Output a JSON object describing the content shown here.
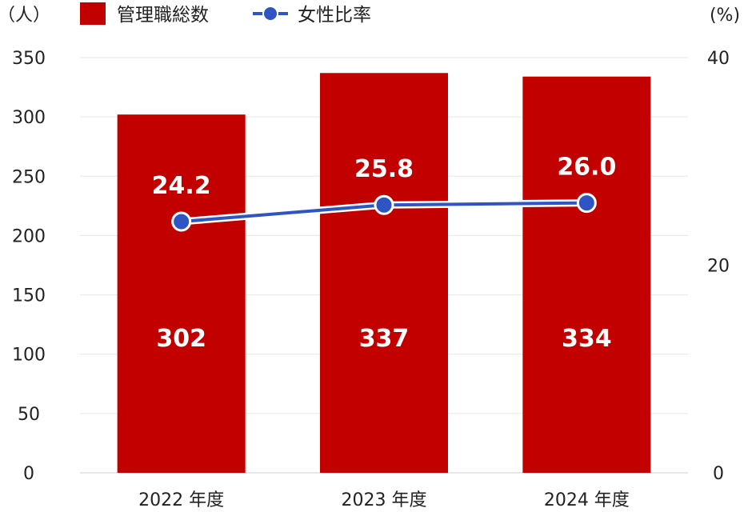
{
  "chart_data": {
    "type": "bar",
    "categories": [
      "2022 年度",
      "2023 年度",
      "2024 年度"
    ],
    "series": [
      {
        "name": "管理職総数",
        "kind": "bar",
        "axis": "left",
        "values": [
          302,
          337,
          334
        ],
        "color": "#c30000"
      },
      {
        "name": "女性比率",
        "kind": "line",
        "axis": "right",
        "values": [
          24.2,
          25.8,
          26.0
        ],
        "color": "#2f55c4"
      }
    ],
    "left_axis": {
      "unit": "（人）",
      "min": 0,
      "max": 350,
      "ticks": [
        0,
        50,
        100,
        150,
        200,
        250,
        300,
        350
      ]
    },
    "right_axis": {
      "unit": "(%)",
      "min": 0,
      "max": 40,
      "ticks": [
        0,
        20,
        40
      ]
    },
    "grid": true,
    "legend_position": "top-left"
  }
}
